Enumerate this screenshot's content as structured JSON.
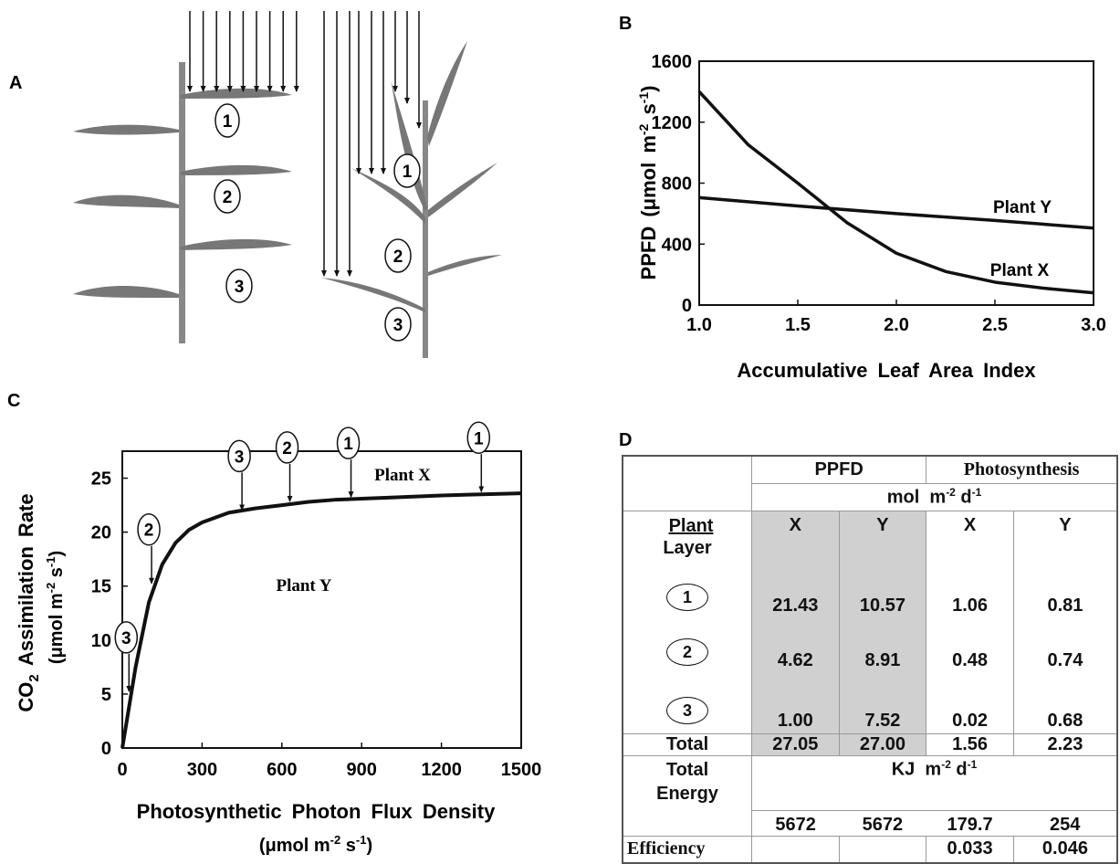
{
  "panel_labels": {
    "a": "A",
    "b": "B",
    "c": "C",
    "d": "D"
  },
  "panel_a": {
    "layer_labels": [
      "1",
      "2",
      "3"
    ]
  },
  "colors": {
    "leaf": "#777777",
    "line": "#111111",
    "table_shade": "#d0d0d0"
  },
  "chart_data": [
    {
      "panel": "B",
      "type": "line",
      "xlabel": "Accumulative Leaf Area Index",
      "ylabel": "PPFD (μmol m⁻² s⁻¹)",
      "xlim": [
        1.0,
        3.0
      ],
      "ylim": [
        0,
        1600
      ],
      "xticks": [
        "1.0",
        "1.5",
        "2.0",
        "2.5",
        "3.0"
      ],
      "yticks": [
        "0",
        "400",
        "800",
        "1200",
        "1600"
      ],
      "series": [
        {
          "name": "Plant X",
          "x": [
            1.0,
            1.25,
            1.5,
            1.75,
            2.0,
            2.25,
            2.5,
            2.75,
            3.0
          ],
          "y": [
            1400,
            1050,
            800,
            540,
            340,
            220,
            150,
            110,
            80
          ]
        },
        {
          "name": "Plant Y",
          "x": [
            1.0,
            1.5,
            2.0,
            2.5,
            3.0
          ],
          "y": [
            705,
            650,
            600,
            555,
            505
          ]
        }
      ]
    },
    {
      "panel": "C",
      "type": "line",
      "xlabel": "Photosynthetic Photon Flux Density",
      "xlabel2": "(μmol m⁻² s⁻¹)",
      "ylabel": "CO₂ Assimilation Rate",
      "ylabel2": "(μmol m⁻² s⁻¹)",
      "xlim": [
        0,
        1500
      ],
      "ylim": [
        0,
        27.5
      ],
      "xticks": [
        "0",
        "300",
        "600",
        "900",
        "1200",
        "1500"
      ],
      "yticks": [
        "0",
        "5",
        "10",
        "15",
        "20",
        "25"
      ],
      "series": [
        {
          "name": "curve",
          "x": [
            0,
            50,
            100,
            150,
            200,
            250,
            300,
            400,
            500,
            600,
            700,
            800,
            900,
            1000,
            1200,
            1500
          ],
          "y": [
            0,
            7.5,
            13.5,
            17.0,
            19.0,
            20.2,
            20.9,
            21.8,
            22.2,
            22.5,
            22.8,
            23.0,
            23.1,
            23.2,
            23.4,
            23.6
          ]
        }
      ],
      "annotations": [
        {
          "label": "1",
          "x": 1350,
          "y": 23.5,
          "series": "Plant X"
        },
        {
          "label": "1",
          "x": 860,
          "y": 23.0,
          "series": "Plant Y"
        },
        {
          "label": "2",
          "x": 630,
          "y": 22.6,
          "series": "Plant Y"
        },
        {
          "label": "3",
          "x": 450,
          "y": 21.8,
          "series": "Plant Y"
        },
        {
          "label": "2",
          "x": 110,
          "y": 15.0,
          "series": "Plant X"
        },
        {
          "label": "3",
          "x": 25,
          "y": 5.0,
          "series": "Plant X"
        }
      ],
      "series_labels": {
        "x": "Plant X",
        "y": "Plant Y"
      }
    },
    {
      "panel": "D",
      "type": "table",
      "header": {
        "ppfd": "PPFD",
        "photosynthesis": "Photosynthesis",
        "units1_a": "mol",
        "units1_b": "m",
        "units1_sup1": "-2",
        "units1_c": " d",
        "units1_sup2": "-1",
        "plant": "Plant",
        "layer": "Layer",
        "x": "X",
        "y": "Y"
      },
      "rows": [
        {
          "layer": "1",
          "ppfd_x": "21.43",
          "ppfd_y": "10.57",
          "ps_x": "1.06",
          "ps_y": "0.81"
        },
        {
          "layer": "2",
          "ppfd_x": "4.62",
          "ppfd_y": "8.91",
          "ps_x": "0.48",
          "ps_y": "0.74"
        },
        {
          "layer": "3",
          "ppfd_x": "1.00",
          "ppfd_y": "7.52",
          "ps_x": "0.02",
          "ps_y": "0.68"
        }
      ],
      "total": {
        "label": "Total",
        "ppfd_x": "27.05",
        "ppfd_y": "27.00",
        "ps_x": "1.56",
        "ps_y": "2.23"
      },
      "energy": {
        "label1": "Total",
        "label2": "Energy",
        "units_a": "KJ",
        "units_b": "m",
        "units_sup1": "-2",
        "units_c": " d",
        "units_sup2": "-1",
        "ppfd_x": "5672",
        "ppfd_y": "5672",
        "ps_x": "179.7",
        "ps_y": "254"
      },
      "efficiency": {
        "label": "Efficiency",
        "ps_x": "0.033",
        "ps_y": "0.046"
      }
    }
  ]
}
